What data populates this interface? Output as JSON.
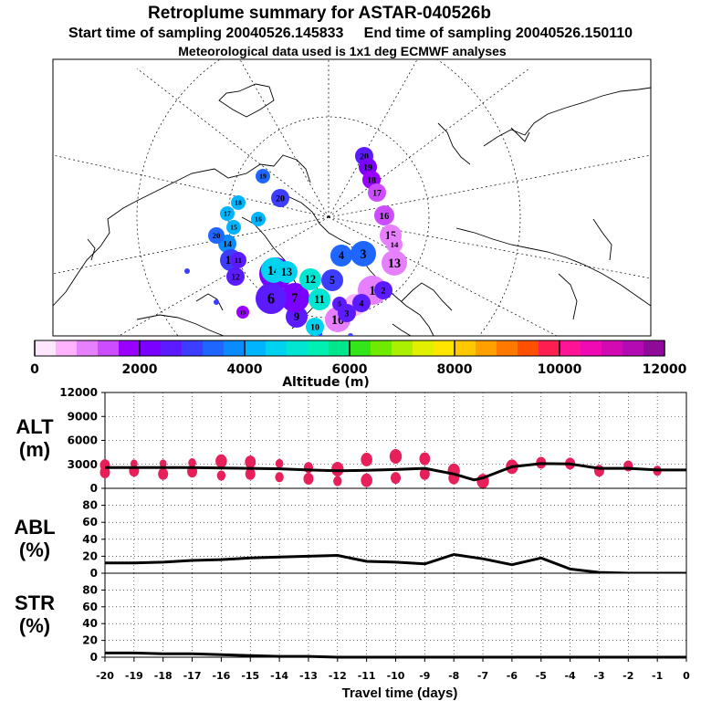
{
  "header": {
    "title": "Retroplume summary for ASTAR-040526b",
    "subtitle": "Start time of sampling 20040526.145833     End time of sampling 20040526.150110",
    "meteo": "Meteorological data used is 1x1 deg ECMWF analyses"
  },
  "colorbar": {
    "title": "Altitude (m)",
    "ticks": [
      "0",
      "2000",
      "4000",
      "6000",
      "8000",
      "10000",
      "12000"
    ],
    "colors": [
      "#ffe6ff",
      "#ffb3ff",
      "#e680ff",
      "#cc4dff",
      "#9900ff",
      "#7a00ff",
      "#5c1aff",
      "#3d3dff",
      "#1f66ff",
      "#0a8cff",
      "#00b4ff",
      "#00d2f0",
      "#00e6d2",
      "#00f0b4",
      "#00e68c",
      "#33e61a",
      "#6eeb00",
      "#aaf000",
      "#e0f000",
      "#ffe600",
      "#ffc800",
      "#ffa000",
      "#ff7800",
      "#ff5000",
      "#ff1e50",
      "#ff1496",
      "#f00ab4",
      "#d20ab4",
      "#b40ab4",
      "#900a9a"
    ]
  },
  "map": {
    "markers": [
      {
        "label": "20",
        "alt": 2400
      },
      {
        "label": "19",
        "alt": 2300
      },
      {
        "label": "18",
        "alt": 1800
      },
      {
        "label": "17",
        "alt": 1500
      },
      {
        "label": "16",
        "alt": 1200
      },
      {
        "label": "15",
        "alt": 1000
      },
      {
        "label": "14",
        "alt": 800
      },
      {
        "label": "13",
        "alt": 900
      },
      {
        "label": "4",
        "alt": 3400
      },
      {
        "label": "3",
        "alt": 3200
      },
      {
        "label": "1",
        "alt": 900
      },
      {
        "label": "2",
        "alt": 600
      },
      {
        "label": "10",
        "alt": 1100
      },
      {
        "label": "9",
        "alt": 2700
      },
      {
        "label": "20",
        "alt": 3100
      },
      {
        "label": "19",
        "alt": 3200
      },
      {
        "label": "18",
        "alt": 4200
      },
      {
        "label": "17",
        "alt": 4000
      },
      {
        "label": "16",
        "alt": 4100
      },
      {
        "label": "15",
        "alt": 4300
      },
      {
        "label": "14",
        "alt": 3700
      },
      {
        "label": "20",
        "alt": 3400
      },
      {
        "label": "13",
        "alt": 2900
      },
      {
        "label": "12",
        "alt": 2700
      },
      {
        "label": "11",
        "alt": 2500
      },
      {
        "label": "8",
        "alt": 2200
      },
      {
        "label": "7",
        "alt": 2300
      },
      {
        "label": "6",
        "alt": 2600
      },
      {
        "label": "5",
        "alt": 2800
      },
      {
        "label": "14",
        "alt": 4600
      },
      {
        "label": "13",
        "alt": 4500
      },
      {
        "label": "12",
        "alt": 5000
      },
      {
        "label": "11",
        "alt": 4800
      },
      {
        "label": "10",
        "alt": 4700
      },
      {
        "label": "15",
        "alt": 1700
      },
      {
        "label": "5",
        "alt": 2700
      },
      {
        "label": "4",
        "alt": 2600
      },
      {
        "label": "3",
        "alt": 2700
      },
      {
        "label": "2",
        "alt": 2500
      }
    ]
  },
  "chart_data": [
    {
      "type": "scatter",
      "panel": "ALT",
      "ylabel": "ALT (m)",
      "ylim": [
        0,
        12000
      ],
      "yticks": [
        "0",
        "3000",
        "6000",
        "9000",
        "12000"
      ],
      "xlim": [
        -20,
        0
      ],
      "mean_line": {
        "x": [
          -20,
          -19,
          -18,
          -17,
          -16,
          -15,
          -14,
          -13,
          -12,
          -11,
          -10,
          -9,
          -8,
          -7.3,
          -7,
          -6,
          -5,
          -4,
          -3,
          -2,
          -1,
          0
        ],
        "y": [
          2600,
          2600,
          2600,
          2600,
          2550,
          2500,
          2450,
          2300,
          2200,
          2250,
          2350,
          2500,
          1800,
          1050,
          1300,
          2700,
          3100,
          3050,
          2500,
          2500,
          2300,
          2300
        ]
      },
      "points": [
        {
          "x": -20,
          "y": 2900,
          "s": 1
        },
        {
          "x": -20,
          "y": 2000,
          "s": 1
        },
        {
          "x": -19,
          "y": 3100,
          "s": 0.6
        },
        {
          "x": -19,
          "y": 2200,
          "s": 1
        },
        {
          "x": -18,
          "y": 3100,
          "s": 0.6
        },
        {
          "x": -18,
          "y": 1800,
          "s": 1
        },
        {
          "x": -17,
          "y": 3200,
          "s": 0.7
        },
        {
          "x": -17,
          "y": 2100,
          "s": 1
        },
        {
          "x": -16,
          "y": 3400,
          "s": 1.2
        },
        {
          "x": -16,
          "y": 1600,
          "s": 0.8
        },
        {
          "x": -15,
          "y": 3300,
          "s": 1.1
        },
        {
          "x": -15,
          "y": 1800,
          "s": 1
        },
        {
          "x": -14,
          "y": 3100,
          "s": 0.7
        },
        {
          "x": -14,
          "y": 1400,
          "s": 0.8
        },
        {
          "x": -13,
          "y": 2600,
          "s": 0.9
        },
        {
          "x": -13,
          "y": 1200,
          "s": 1
        },
        {
          "x": -12,
          "y": 2400,
          "s": 1.3
        },
        {
          "x": -12,
          "y": 900,
          "s": 0.8
        },
        {
          "x": -11,
          "y": 3600,
          "s": 1.2
        },
        {
          "x": -11,
          "y": 1000,
          "s": 1.2
        },
        {
          "x": -10,
          "y": 4000,
          "s": 1.3
        },
        {
          "x": -10,
          "y": 1300,
          "s": 1
        },
        {
          "x": -9,
          "y": 3700,
          "s": 1.1
        },
        {
          "x": -9,
          "y": 1800,
          "s": 1
        },
        {
          "x": -8,
          "y": 2200,
          "s": 1.3
        },
        {
          "x": -8,
          "y": 1300,
          "s": 1.1
        },
        {
          "x": -7,
          "y": 900,
          "s": 1.3
        },
        {
          "x": -6,
          "y": 2700,
          "s": 1.3
        },
        {
          "x": -5,
          "y": 3200,
          "s": 1
        },
        {
          "x": -4,
          "y": 3100,
          "s": 1
        },
        {
          "x": -3,
          "y": 2200,
          "s": 1
        },
        {
          "x": -2,
          "y": 2800,
          "s": 0.9
        },
        {
          "x": -1,
          "y": 2200,
          "s": 0.8
        }
      ]
    },
    {
      "type": "line",
      "panel": "ABL",
      "ylabel": "ABL (%)",
      "ylim": [
        0,
        100
      ],
      "yticks": [
        "0",
        "20",
        "40",
        "60",
        "80"
      ],
      "xlim": [
        -20,
        0
      ],
      "x": [
        -20,
        -19,
        -18,
        -17,
        -16,
        -15,
        -14,
        -13,
        -12,
        -11,
        -10,
        -9,
        -8,
        -7,
        -6,
        -5,
        -4,
        -3,
        -2,
        -1,
        0
      ],
      "y": [
        12,
        12,
        13,
        15,
        16,
        18,
        19,
        20,
        21,
        14,
        13,
        11,
        22,
        17,
        10,
        18,
        5,
        1,
        0,
        0,
        0
      ]
    },
    {
      "type": "line",
      "panel": "STR",
      "ylabel": "STR (%)",
      "ylim": [
        0,
        100
      ],
      "yticks": [
        "0",
        "20",
        "40",
        "60",
        "80"
      ],
      "xlim": [
        -20,
        0
      ],
      "xlabel": "Travel time (days)",
      "xticks": [
        "-20",
        "-19",
        "-18",
        "-17",
        "-16",
        "-15",
        "-14",
        "-13",
        "-12",
        "-11",
        "-10",
        "-9",
        "-8",
        "-7",
        "-6",
        "-5",
        "-4",
        "-3",
        "-2",
        "-1",
        "0"
      ],
      "x": [
        -20,
        -19,
        -18,
        -17,
        -16,
        -15,
        -14,
        -13,
        -12,
        -11,
        -10,
        -9,
        -8,
        -7,
        -6,
        -5,
        -4,
        -3,
        -2,
        -1,
        0
      ],
      "y": [
        5,
        5,
        4,
        4,
        3,
        2,
        1,
        1,
        0,
        0,
        0,
        0,
        0,
        0,
        0,
        0,
        0,
        0,
        0,
        0,
        0
      ]
    }
  ]
}
